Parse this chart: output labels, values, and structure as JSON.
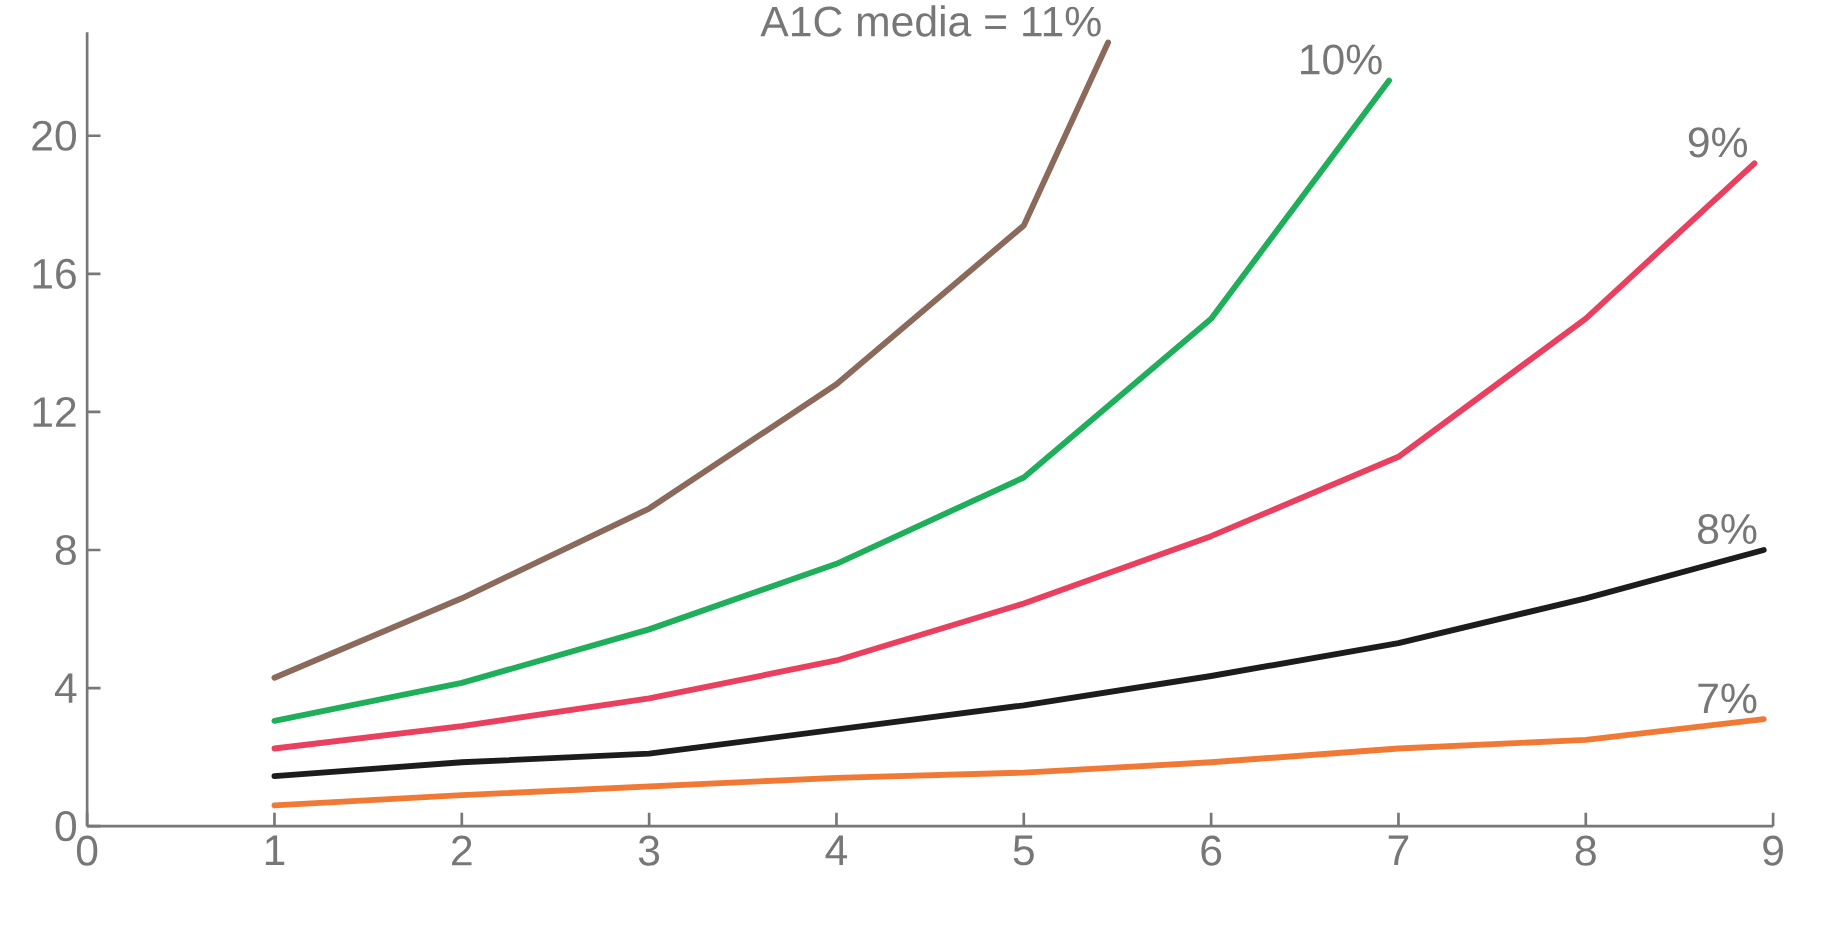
{
  "chart_data": {
    "type": "line",
    "xlim": [
      0,
      9
    ],
    "ylim": [
      0,
      23
    ],
    "xticks": [
      0,
      1,
      2,
      3,
      4,
      5,
      6,
      7,
      8,
      9
    ],
    "yticks": [
      0,
      4,
      8,
      12,
      16,
      20
    ],
    "grid": false,
    "marker": "none",
    "line_style": "solid",
    "series": [
      {
        "name": "A1C media = 11%",
        "color": "#8b6a5c",
        "x": [
          1,
          2,
          3,
          4,
          5,
          5.45
        ],
        "values": [
          4.3,
          6.6,
          9.2,
          12.8,
          17.4,
          22.7
        ]
      },
      {
        "name": "10%",
        "color": "#1fae5a",
        "x": [
          1,
          2,
          3,
          4,
          5,
          6,
          6.95
        ],
        "values": [
          3.05,
          4.15,
          5.7,
          7.6,
          10.1,
          14.7,
          21.6
        ]
      },
      {
        "name": "9%",
        "color": "#e8405e",
        "x": [
          1,
          2,
          3,
          4,
          5,
          6,
          7,
          8,
          8.9
        ],
        "values": [
          2.25,
          2.9,
          3.7,
          4.8,
          6.45,
          8.4,
          10.7,
          14.7,
          19.2
        ]
      },
      {
        "name": "8%",
        "color": "#1c1c1c",
        "x": [
          1,
          2,
          3,
          4,
          5,
          6,
          7,
          8,
          8.95
        ],
        "values": [
          1.45,
          1.85,
          2.1,
          2.8,
          3.5,
          4.35,
          5.3,
          6.6,
          8.0
        ]
      },
      {
        "name": "7%",
        "color": "#f07a35",
        "x": [
          1,
          2,
          3,
          4,
          5,
          6,
          7,
          8,
          8.95
        ],
        "values": [
          0.6,
          0.9,
          1.15,
          1.4,
          1.55,
          1.85,
          2.25,
          2.5,
          3.1
        ]
      }
    ]
  }
}
